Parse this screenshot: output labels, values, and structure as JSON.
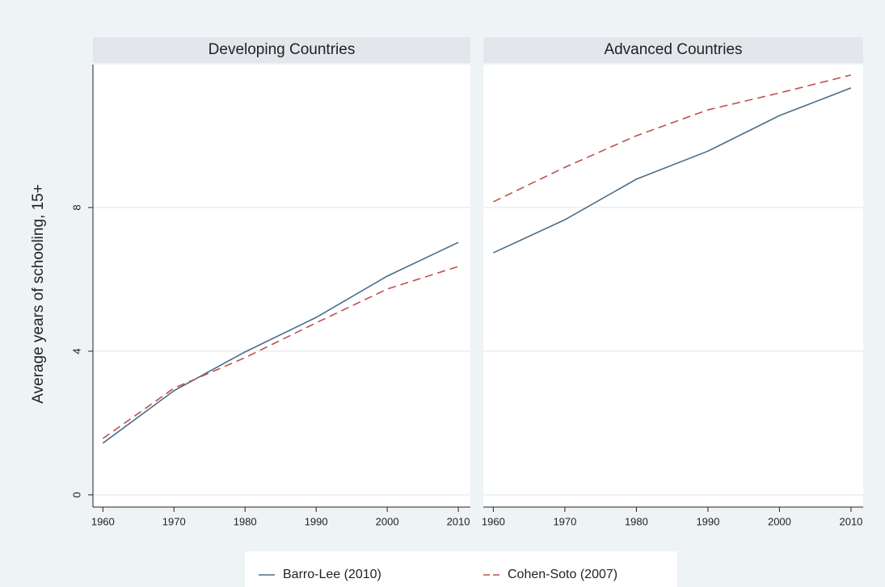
{
  "chart_data": [
    {
      "type": "line",
      "title": "Developing Countries",
      "ylabel": "Average years of schooling, 15+",
      "x": [
        1960,
        1970,
        1980,
        1990,
        2000,
        2010
      ],
      "series": [
        {
          "name": "Barro-Lee (2010)",
          "color": "#4a6e8a",
          "linestyle": "solid",
          "values": [
            1.44,
            2.9,
            3.98,
            4.94,
            6.09,
            7.03
          ]
        },
        {
          "name": "Cohen-Soto (2007)",
          "color": "#c0504d",
          "linestyle": "dashed",
          "values": [
            1.57,
            2.97,
            3.82,
            4.79,
            5.73,
            6.36
          ]
        }
      ],
      "xlim": [
        1958.6,
        2011.7
      ],
      "xticks": [
        1960,
        1970,
        1980,
        1990,
        2000,
        2010
      ],
      "ylim": [
        -0.34,
        11.98
      ],
      "yticks": [
        0,
        4,
        8
      ],
      "grid": true,
      "legend": "bottom"
    },
    {
      "type": "line",
      "title": "Advanced Countries",
      "x": [
        1960,
        1970,
        1980,
        1990,
        2000,
        2010
      ],
      "series": [
        {
          "color": "#4a6e8a",
          "linestyle": "solid",
          "values": [
            6.74,
            7.66,
            8.79,
            9.57,
            10.56,
            11.33
          ]
        },
        {
          "color": "#c0504d",
          "linestyle": "dashed",
          "values": [
            8.16,
            9.12,
            10.0,
            10.72,
            11.19,
            11.69
          ]
        }
      ],
      "xlim": [
        1958.6,
        2011.7
      ],
      "xticks": [
        1960,
        1970,
        1980,
        1990,
        2000,
        2010
      ],
      "ylim": [
        -0.34,
        11.98
      ],
      "yticks": [
        0,
        4,
        8
      ],
      "grid": true
    }
  ]
}
